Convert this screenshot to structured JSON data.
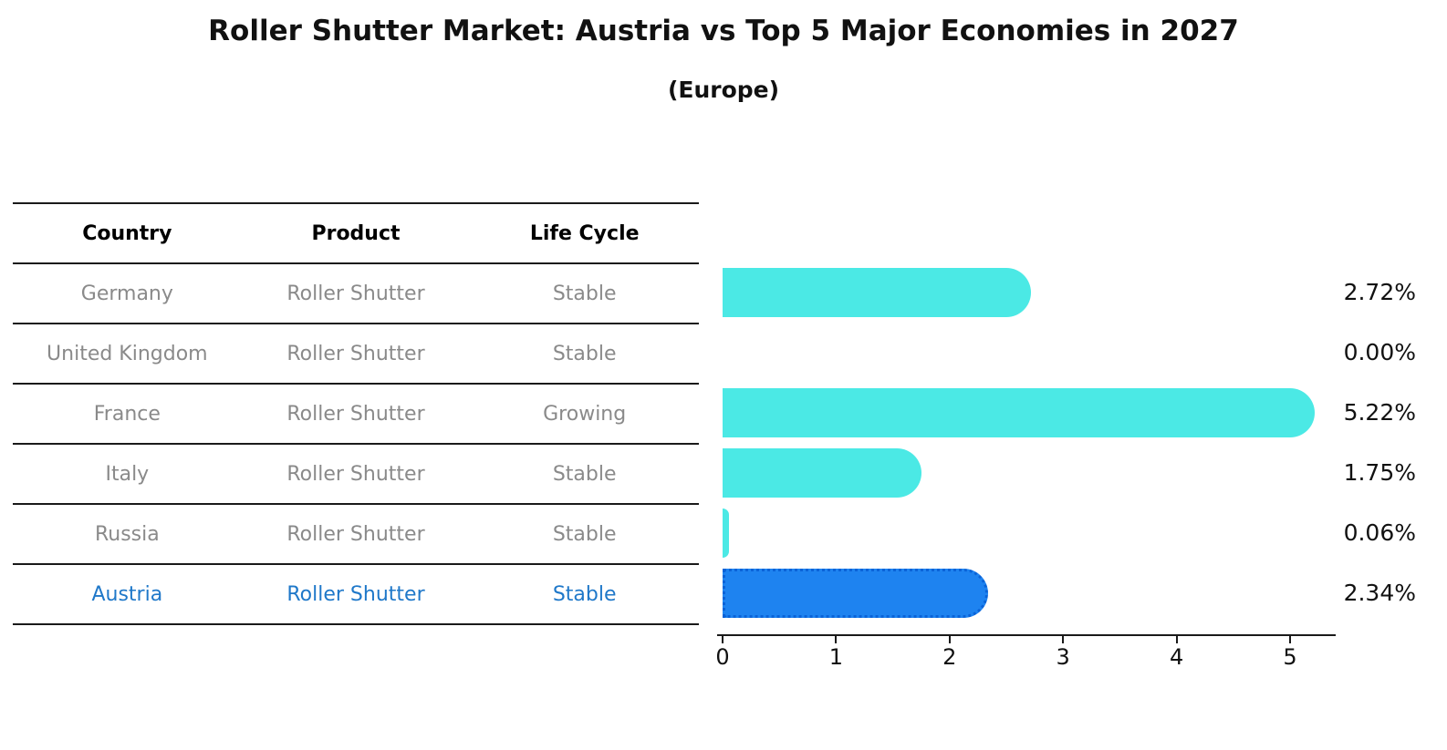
{
  "title": "Roller Shutter Market: Austria vs Top 5 Major Economies in 2027",
  "subtitle": "(Europe)",
  "table": {
    "headers": [
      "Country",
      "Product",
      "Life Cycle"
    ]
  },
  "rows": [
    {
      "country": "Germany",
      "product": "Roller Shutter",
      "life_cycle": "Stable",
      "value": 2.72,
      "value_label": "2.72%",
      "highlight": false
    },
    {
      "country": "United Kingdom",
      "product": "Roller Shutter",
      "life_cycle": "Stable",
      "value": 0.0,
      "value_label": "0.00%",
      "highlight": false
    },
    {
      "country": "France",
      "product": "Roller Shutter",
      "life_cycle": "Growing",
      "value": 5.22,
      "value_label": "5.22%",
      "highlight": false
    },
    {
      "country": "Italy",
      "product": "Roller Shutter",
      "life_cycle": "Stable",
      "value": 1.75,
      "value_label": "1.75%",
      "highlight": false
    },
    {
      "country": "Russia",
      "product": "Roller Shutter",
      "life_cycle": "Stable",
      "value": 0.06,
      "value_label": "0.06%",
      "highlight": false
    },
    {
      "country": "Austria",
      "product": "Roller Shutter",
      "life_cycle": "Stable",
      "value": 2.34,
      "value_label": "2.34%",
      "highlight": true
    }
  ],
  "x_axis": {
    "ticks": [
      "0",
      "1",
      "2",
      "3",
      "4",
      "5"
    ]
  },
  "colors": {
    "bar_fill": "#4be9e5",
    "highlight_fill": "#1e83f0",
    "highlight_border": "#0a63d8",
    "row_text": "#8a8a8a",
    "highlight_text": "#1f78c9",
    "header_text": "#000000",
    "axis": "#1a1a1a"
  },
  "chart_data": {
    "type": "bar",
    "orientation": "horizontal",
    "title": "Roller Shutter Market: Austria vs Top 5 Major Economies in 2027",
    "subtitle": "(Europe)",
    "categories": [
      "Germany",
      "United Kingdom",
      "France",
      "Italy",
      "Russia",
      "Austria"
    ],
    "values": [
      2.72,
      0.0,
      5.22,
      1.75,
      0.06,
      2.34
    ],
    "value_labels": [
      "2.72%",
      "0.00%",
      "5.22%",
      "1.75%",
      "0.06%",
      "2.34%"
    ],
    "xlabel": "",
    "ylabel": "",
    "xlim": [
      0,
      5.4
    ],
    "xticks": [
      0,
      1,
      2,
      3,
      4,
      5
    ],
    "grid": false,
    "legend": false,
    "highlighted_category": "Austria",
    "table_columns": [
      "Country",
      "Product",
      "Life Cycle"
    ],
    "table_rows": [
      [
        "Germany",
        "Roller Shutter",
        "Stable"
      ],
      [
        "United Kingdom",
        "Roller Shutter",
        "Stable"
      ],
      [
        "France",
        "Roller Shutter",
        "Growing"
      ],
      [
        "Italy",
        "Roller Shutter",
        "Stable"
      ],
      [
        "Russia",
        "Roller Shutter",
        "Stable"
      ],
      [
        "Austria",
        "Roller Shutter",
        "Stable"
      ]
    ]
  }
}
